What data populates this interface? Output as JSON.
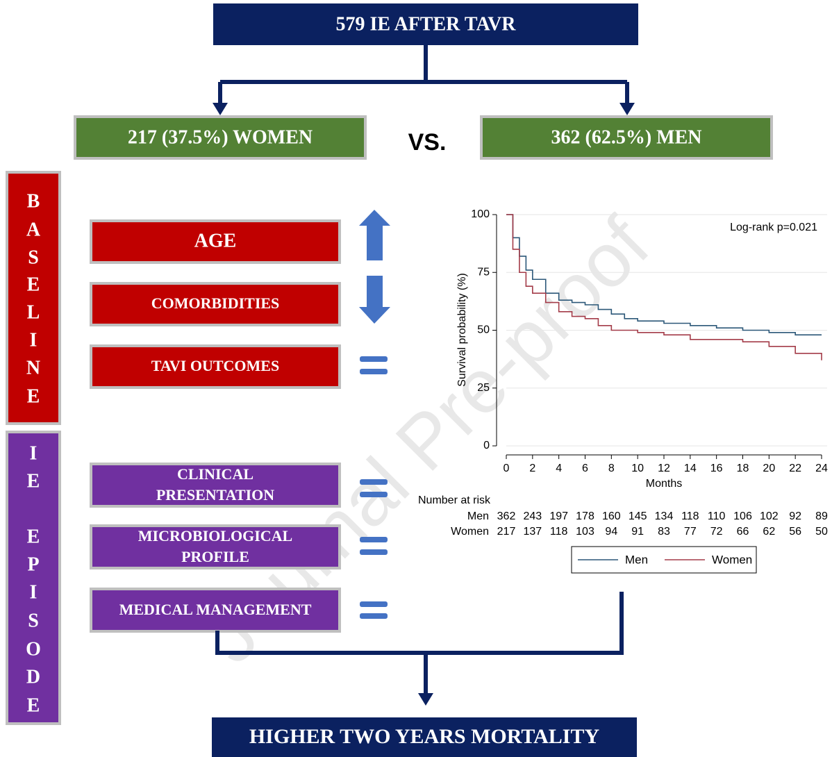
{
  "header": {
    "title": "579 IE AFTER TAVR"
  },
  "groups": {
    "women": "217 (37.5%) WOMEN",
    "vs": "VS.",
    "men": "362 (62.5%) MEN"
  },
  "side_labels": {
    "baseline": [
      "B",
      "A",
      "S",
      "E",
      "L",
      "I",
      "N",
      "E"
    ],
    "episode": [
      [
        "I",
        "E"
      ],
      [
        "E",
        "P",
        "I",
        "S",
        "O",
        "D",
        "E"
      ]
    ]
  },
  "baseline_boxes": [
    "AGE",
    "COMORBIDITIES",
    "TAVI OUTCOMES"
  ],
  "episode_boxes": [
    [
      "CLINICAL",
      "PRESENTATION"
    ],
    [
      "MICROBIOLOGICAL",
      "PROFILE"
    ],
    [
      "MEDICAL MANAGEMENT"
    ]
  ],
  "watermark": "Journal Pre-proof",
  "footer": {
    "title": "HIGHER TWO YEARS MORTALITY"
  },
  "chart_data": {
    "type": "line",
    "step": true,
    "annotation": "Log-rank p=0.021",
    "x_label": "Months",
    "y_label": "Survival probability (%)",
    "x": [
      0,
      0.5,
      1,
      1.5,
      2,
      3,
      4,
      5,
      6,
      7,
      8,
      9,
      10,
      12,
      14,
      16,
      18,
      20,
      22,
      24
    ],
    "series": [
      {
        "name": "Men",
        "color": "#2b5778",
        "values": [
          100,
          90,
          82,
          76,
          72,
          66,
          63,
          62,
          61,
          59,
          57,
          55,
          54,
          53,
          52,
          51,
          50,
          49,
          48,
          48
        ]
      },
      {
        "name": "Women",
        "color": "#a33b48",
        "values": [
          100,
          85,
          75,
          69,
          66,
          62,
          58,
          56,
          55,
          52,
          50,
          50,
          49,
          48,
          46,
          46,
          45,
          43,
          40,
          37
        ]
      }
    ],
    "xlim": [
      0,
      24
    ],
    "xticks": [
      0,
      2,
      4,
      6,
      8,
      10,
      12,
      14,
      16,
      18,
      20,
      22,
      24
    ],
    "ylim": [
      0,
      100
    ],
    "yticks": [
      0,
      25,
      50,
      75,
      100
    ],
    "grid": true,
    "risk_table": {
      "title": "Number at risk",
      "rows": [
        {
          "name": "Men",
          "values": [
            362,
            243,
            197,
            178,
            160,
            145,
            134,
            118,
            110,
            106,
            102,
            92,
            89
          ]
        },
        {
          "name": "Women",
          "values": [
            217,
            137,
            118,
            103,
            94,
            91,
            83,
            77,
            72,
            66,
            62,
            56,
            50
          ]
        }
      ]
    }
  }
}
